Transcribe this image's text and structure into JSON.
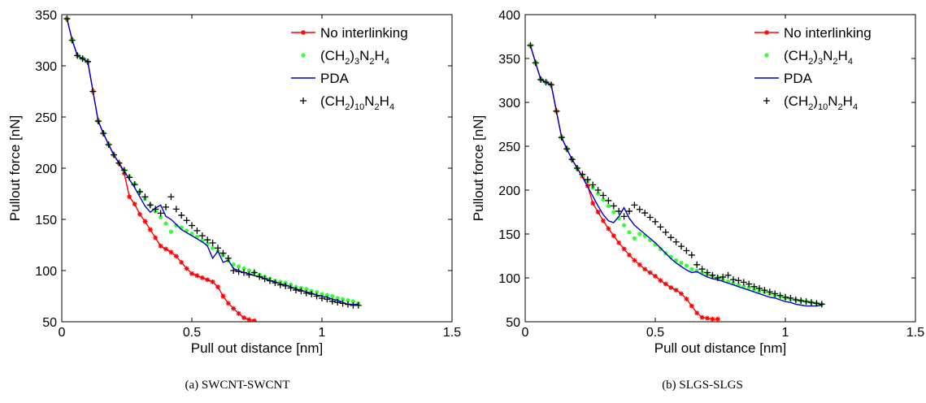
{
  "captions": [
    "(a) SWCNT-SWCNT",
    "(b) SLGS-SLGS"
  ],
  "chart_data": [
    {
      "type": "line",
      "title": "",
      "xlabel": "Pull out distance [nm]",
      "ylabel": "Pullout force [nN]",
      "xlim": [
        0,
        1.5
      ],
      "ylim": [
        50,
        350
      ],
      "xticks": [
        0,
        0.5,
        1,
        1.5
      ],
      "xtick_labels": [
        "0",
        "0.5",
        "1",
        "1.5"
      ],
      "yticks": [
        50,
        100,
        150,
        200,
        250,
        300,
        350
      ],
      "ytick_labels": [
        "50",
        "100",
        "150",
        "200",
        "250",
        "300",
        "350"
      ],
      "grid": false,
      "legend": "top-right",
      "series": [
        {
          "name": "No interlinking",
          "style": "line-star",
          "color": "#ff0000",
          "x": [
            0.02,
            0.04,
            0.06,
            0.08,
            0.1,
            0.12,
            0.14,
            0.16,
            0.18,
            0.2,
            0.22,
            0.24,
            0.26,
            0.28,
            0.3,
            0.32,
            0.34,
            0.36,
            0.38,
            0.4,
            0.42,
            0.44,
            0.46,
            0.48,
            0.5,
            0.52,
            0.54,
            0.56,
            0.58,
            0.6,
            0.62,
            0.64,
            0.66,
            0.68,
            0.7,
            0.72,
            0.74
          ],
          "y": [
            346,
            325,
            310,
            307,
            304,
            275,
            246,
            234,
            223,
            213,
            205,
            195,
            172,
            165,
            155,
            148,
            140,
            132,
            124,
            121,
            118,
            114,
            108,
            102,
            97,
            95,
            93,
            91,
            89,
            84,
            75,
            68,
            63,
            58,
            54,
            52,
            51
          ]
        },
        {
          "name": "(CH2)3N2H4",
          "style": "dots",
          "color": "#33ff33",
          "x": [
            0.02,
            0.04,
            0.06,
            0.08,
            0.1,
            0.12,
            0.14,
            0.16,
            0.18,
            0.2,
            0.22,
            0.24,
            0.26,
            0.28,
            0.3,
            0.32,
            0.34,
            0.36,
            0.38,
            0.4,
            0.42,
            0.44,
            0.46,
            0.48,
            0.5,
            0.52,
            0.54,
            0.56,
            0.58,
            0.6,
            0.62,
            0.64,
            0.66,
            0.68,
            0.7,
            0.72,
            0.74,
            0.76,
            0.78,
            0.8,
            0.82,
            0.84,
            0.86,
            0.88,
            0.9,
            0.92,
            0.94,
            0.96,
            0.98,
            1.0,
            1.02,
            1.04,
            1.06,
            1.08,
            1.1,
            1.12,
            1.14
          ],
          "y": [
            346,
            325,
            310,
            307,
            304,
            275,
            246,
            234,
            223,
            213,
            205,
            198,
            192,
            185,
            177,
            170,
            164,
            158,
            152,
            146,
            138,
            144,
            142,
            139,
            136,
            133,
            129,
            126,
            122,
            119,
            115,
            110,
            106,
            104,
            102,
            100,
            98,
            96,
            94,
            92,
            90,
            89,
            88,
            86,
            84,
            83,
            82,
            80,
            79,
            77,
            76,
            75,
            73,
            72,
            71,
            70,
            68
          ]
        },
        {
          "name": "PDA",
          "style": "line",
          "color": "#0000cc",
          "x": [
            0.02,
            0.04,
            0.06,
            0.08,
            0.1,
            0.12,
            0.14,
            0.16,
            0.18,
            0.2,
            0.22,
            0.24,
            0.26,
            0.28,
            0.3,
            0.32,
            0.34,
            0.36,
            0.38,
            0.4,
            0.42,
            0.44,
            0.46,
            0.48,
            0.5,
            0.52,
            0.54,
            0.56,
            0.58,
            0.6,
            0.62,
            0.64,
            0.66,
            0.68,
            0.7,
            0.72,
            0.74,
            0.76,
            0.78,
            0.8,
            0.82,
            0.84,
            0.86,
            0.88,
            0.9,
            0.92,
            0.94,
            0.96,
            0.98,
            1.0,
            1.02,
            1.04,
            1.06,
            1.08,
            1.1,
            1.12,
            1.14
          ],
          "y": [
            346,
            325,
            310,
            307,
            304,
            275,
            246,
            234,
            223,
            213,
            205,
            197,
            189,
            181,
            172,
            163,
            157,
            161,
            164,
            153,
            150,
            145,
            140,
            137,
            134,
            131,
            128,
            124,
            112,
            119,
            108,
            110,
            102,
            100,
            98,
            97,
            95,
            94,
            92,
            90,
            89,
            87,
            86,
            84,
            82,
            81,
            79,
            78,
            76,
            75,
            74,
            72,
            71,
            69,
            67,
            67,
            67
          ]
        },
        {
          "name": "(CH2)10N2H4",
          "style": "plus",
          "color": "#000000",
          "x": [
            0.02,
            0.04,
            0.06,
            0.08,
            0.1,
            0.12,
            0.14,
            0.16,
            0.18,
            0.2,
            0.22,
            0.24,
            0.26,
            0.28,
            0.3,
            0.32,
            0.34,
            0.36,
            0.38,
            0.4,
            0.42,
            0.44,
            0.46,
            0.48,
            0.5,
            0.52,
            0.54,
            0.56,
            0.58,
            0.6,
            0.62,
            0.64,
            0.66,
            0.68,
            0.7,
            0.72,
            0.74,
            0.76,
            0.78,
            0.8,
            0.82,
            0.84,
            0.86,
            0.88,
            0.9,
            0.92,
            0.94,
            0.96,
            0.98,
            1.0,
            1.02,
            1.04,
            1.06,
            1.08,
            1.1,
            1.12,
            1.14
          ],
          "y": [
            346,
            325,
            310,
            307,
            304,
            275,
            246,
            234,
            223,
            213,
            205,
            198,
            191,
            184,
            177,
            172,
            164,
            160,
            156,
            162,
            172,
            160,
            154,
            149,
            144,
            139,
            134,
            130,
            127,
            122,
            117,
            112,
            100,
            99,
            98,
            96,
            98,
            94,
            92,
            90,
            88,
            86,
            85,
            83,
            81,
            80,
            78,
            77,
            75,
            73,
            72,
            70,
            69,
            68,
            67,
            66,
            66
          ]
        }
      ]
    },
    {
      "type": "line",
      "title": "",
      "xlabel": "Pull out distance [nm]",
      "ylabel": "Pullout force [nN]",
      "xlim": [
        0,
        1.5
      ],
      "ylim": [
        50,
        400
      ],
      "xticks": [
        0,
        0.5,
        1,
        1.5
      ],
      "xtick_labels": [
        "0",
        "0.5",
        "1",
        "1.5"
      ],
      "yticks": [
        50,
        100,
        150,
        200,
        250,
        300,
        350,
        400
      ],
      "ytick_labels": [
        "50",
        "100",
        "150",
        "200",
        "250",
        "300",
        "350",
        "400"
      ],
      "grid": false,
      "legend": "top-right",
      "series": [
        {
          "name": "No interlinking",
          "style": "line-star",
          "color": "#ff0000",
          "x": [
            0.02,
            0.04,
            0.06,
            0.08,
            0.1,
            0.12,
            0.14,
            0.16,
            0.18,
            0.2,
            0.22,
            0.24,
            0.26,
            0.28,
            0.3,
            0.32,
            0.34,
            0.36,
            0.38,
            0.4,
            0.42,
            0.44,
            0.46,
            0.48,
            0.5,
            0.52,
            0.54,
            0.56,
            0.58,
            0.6,
            0.62,
            0.64,
            0.66,
            0.68,
            0.7,
            0.72,
            0.74
          ],
          "y": [
            365,
            345,
            326,
            323,
            320,
            290,
            260,
            247,
            235,
            225,
            216,
            205,
            185,
            175,
            165,
            156,
            148,
            140,
            133,
            126,
            120,
            115,
            110,
            106,
            102,
            97,
            93,
            89,
            86,
            82,
            76,
            68,
            60,
            55,
            54,
            53,
            53
          ]
        },
        {
          "name": "(CH2)3N2H4",
          "style": "dots",
          "color": "#33ff33",
          "x": [
            0.02,
            0.04,
            0.06,
            0.08,
            0.1,
            0.12,
            0.14,
            0.16,
            0.18,
            0.2,
            0.22,
            0.24,
            0.26,
            0.28,
            0.3,
            0.32,
            0.34,
            0.36,
            0.38,
            0.4,
            0.42,
            0.44,
            0.46,
            0.48,
            0.5,
            0.52,
            0.54,
            0.56,
            0.58,
            0.6,
            0.62,
            0.64,
            0.66,
            0.68,
            0.7,
            0.72,
            0.74,
            0.76,
            0.78,
            0.8,
            0.82,
            0.84,
            0.86,
            0.88,
            0.9,
            0.92,
            0.94,
            0.96,
            0.98,
            1.0,
            1.02,
            1.04,
            1.06,
            1.08,
            1.1,
            1.12,
            1.14
          ],
          "y": [
            365,
            345,
            326,
            323,
            320,
            290,
            260,
            247,
            235,
            225,
            217,
            210,
            203,
            196,
            189,
            182,
            175,
            168,
            160,
            152,
            145,
            150,
            148,
            143,
            138,
            133,
            128,
            124,
            120,
            117,
            114,
            110,
            108,
            106,
            104,
            102,
            100,
            98,
            96,
            94,
            92,
            90,
            89,
            87,
            85,
            84,
            82,
            80,
            79,
            77,
            76,
            75,
            74,
            73,
            72,
            71,
            70
          ]
        },
        {
          "name": "PDA",
          "style": "line",
          "color": "#0000cc",
          "x": [
            0.02,
            0.04,
            0.06,
            0.08,
            0.1,
            0.12,
            0.14,
            0.16,
            0.18,
            0.2,
            0.22,
            0.24,
            0.26,
            0.28,
            0.3,
            0.32,
            0.34,
            0.36,
            0.38,
            0.4,
            0.42,
            0.44,
            0.46,
            0.48,
            0.5,
            0.52,
            0.54,
            0.56,
            0.58,
            0.6,
            0.62,
            0.64,
            0.66,
            0.68,
            0.7,
            0.72,
            0.74,
            0.76,
            0.78,
            0.8,
            0.82,
            0.84,
            0.86,
            0.88,
            0.9,
            0.92,
            0.94,
            0.96,
            0.98,
            1.0,
            1.02,
            1.04,
            1.06,
            1.08,
            1.1,
            1.12,
            1.14
          ],
          "y": [
            365,
            345,
            326,
            323,
            320,
            290,
            260,
            247,
            235,
            225,
            215,
            204,
            193,
            182,
            172,
            165,
            163,
            170,
            180,
            168,
            160,
            155,
            150,
            145,
            140,
            134,
            128,
            122,
            117,
            113,
            109,
            106,
            107,
            104,
            101,
            99,
            98,
            96,
            94,
            92,
            90,
            88,
            86,
            84,
            82,
            80,
            78,
            77,
            75,
            73,
            72,
            70,
            69,
            68,
            68,
            68,
            69
          ]
        },
        {
          "name": "(CH2)10N2H4",
          "style": "plus",
          "color": "#000000",
          "x": [
            0.02,
            0.04,
            0.06,
            0.08,
            0.1,
            0.12,
            0.14,
            0.16,
            0.18,
            0.2,
            0.22,
            0.24,
            0.26,
            0.28,
            0.3,
            0.32,
            0.34,
            0.36,
            0.38,
            0.4,
            0.42,
            0.44,
            0.46,
            0.48,
            0.5,
            0.52,
            0.54,
            0.56,
            0.58,
            0.6,
            0.62,
            0.64,
            0.66,
            0.68,
            0.7,
            0.72,
            0.74,
            0.76,
            0.78,
            0.8,
            0.82,
            0.84,
            0.86,
            0.88,
            0.9,
            0.92,
            0.94,
            0.96,
            0.98,
            1.0,
            1.02,
            1.04,
            1.06,
            1.08,
            1.1,
            1.12,
            1.14
          ],
          "y": [
            365,
            345,
            326,
            323,
            320,
            290,
            260,
            247,
            235,
            225,
            218,
            212,
            206,
            200,
            194,
            188,
            182,
            176,
            170,
            176,
            183,
            178,
            174,
            169,
            164,
            158,
            152,
            146,
            141,
            136,
            131,
            126,
            115,
            110,
            106,
            103,
            100,
            101,
            103,
            98,
            97,
            95,
            93,
            90,
            88,
            86,
            84,
            82,
            80,
            78,
            77,
            75,
            74,
            73,
            72,
            71,
            70
          ]
        }
      ]
    }
  ]
}
